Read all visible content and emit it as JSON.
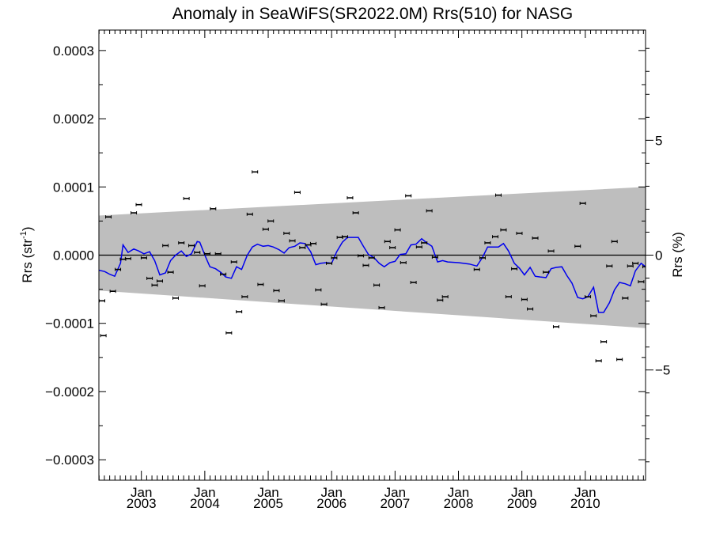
{
  "chart_data": {
    "type": "scatter",
    "title": "Anomaly in SeaWiFS(SR2022.0M) Rrs(510) for NASG",
    "ylabel": "Rrs (str",
    "ylabel_sup": "-1",
    "ylabel_close": ")",
    "y2label": "Rrs (%)",
    "xlim": [
      2002.33,
      2010.95
    ],
    "ylim": [
      -0.00033,
      0.00033
    ],
    "y2lim": [
      -9.8,
      9.8
    ],
    "grid": false,
    "yticks": [
      {
        "value": 0.0003,
        "label": "0.0003"
      },
      {
        "value": 0.0002,
        "label": "0.0002"
      },
      {
        "value": 0.0001,
        "label": "0.0001"
      },
      {
        "value": 0.0,
        "label": "0.0000"
      },
      {
        "value": -0.0001,
        "label": "−0.0001"
      },
      {
        "value": -0.0002,
        "label": "−0.0002"
      },
      {
        "value": -0.0003,
        "label": "−0.0003"
      }
    ],
    "y2ticks": [
      {
        "value": 5,
        "label": "5"
      },
      {
        "value": 0,
        "label": "0"
      },
      {
        "value": -5,
        "label": "−5"
      }
    ],
    "xticks": [
      {
        "value": 2003.0,
        "month": "Jan",
        "year": "2003"
      },
      {
        "value": 2004.0,
        "month": "Jan",
        "year": "2004"
      },
      {
        "value": 2005.0,
        "month": "Jan",
        "year": "2005"
      },
      {
        "value": 2006.0,
        "month": "Jan",
        "year": "2006"
      },
      {
        "value": 2007.0,
        "month": "Jan",
        "year": "2007"
      },
      {
        "value": 2008.0,
        "month": "Jan",
        "year": "2008"
      },
      {
        "value": 2009.0,
        "month": "Jan",
        "year": "2009"
      },
      {
        "value": 2010.0,
        "month": "Jan",
        "year": "2010"
      }
    ],
    "uncertainty_band": {
      "x": [
        2002.33,
        2010.95
      ],
      "upper": [
        5.8e-05,
        0.0001
      ],
      "lower": [
        -5.2e-05,
        -0.000107
      ]
    },
    "points": [
      {
        "x": 2002.38,
        "y": -6.7e-05
      },
      {
        "x": 2002.4,
        "y": -0.000118
      },
      {
        "x": 2002.48,
        "y": 5.6e-05
      },
      {
        "x": 2002.55,
        "y": -5.3e-05
      },
      {
        "x": 2002.63,
        "y": -2.1e-05
      },
      {
        "x": 2002.71,
        "y": -6e-06
      },
      {
        "x": 2002.79,
        "y": -5e-06
      },
      {
        "x": 2002.88,
        "y": 6.2e-05
      },
      {
        "x": 2002.96,
        "y": 7.4e-05
      },
      {
        "x": 2003.04,
        "y": -4e-06
      },
      {
        "x": 2003.13,
        "y": -3.4e-05
      },
      {
        "x": 2003.21,
        "y": -4.4e-05
      },
      {
        "x": 2003.29,
        "y": -3.8e-05
      },
      {
        "x": 2003.38,
        "y": 1.4e-05
      },
      {
        "x": 2003.46,
        "y": -2.5e-05
      },
      {
        "x": 2003.54,
        "y": -6.3e-05
      },
      {
        "x": 2003.63,
        "y": 1.8e-05
      },
      {
        "x": 2003.71,
        "y": 8.3e-05
      },
      {
        "x": 2003.79,
        "y": 1.4e-05
      },
      {
        "x": 2003.88,
        "y": 4e-06
      },
      {
        "x": 2003.96,
        "y": -4.5e-05
      },
      {
        "x": 2004.04,
        "y": 2e-06
      },
      {
        "x": 2004.13,
        "y": 6.8e-05
      },
      {
        "x": 2004.21,
        "y": 2e-06
      },
      {
        "x": 2004.29,
        "y": -2.8e-05
      },
      {
        "x": 2004.38,
        "y": -0.000114
      },
      {
        "x": 2004.46,
        "y": -1e-05
      },
      {
        "x": 2004.54,
        "y": -8.3e-05
      },
      {
        "x": 2004.63,
        "y": -6.1e-05
      },
      {
        "x": 2004.71,
        "y": 6e-05
      },
      {
        "x": 2004.79,
        "y": 0.000122
      },
      {
        "x": 2004.88,
        "y": -4.3e-05
      },
      {
        "x": 2004.96,
        "y": 3.8e-05
      },
      {
        "x": 2005.04,
        "y": 5e-05
      },
      {
        "x": 2005.13,
        "y": -5.2e-05
      },
      {
        "x": 2005.21,
        "y": -6.7e-05
      },
      {
        "x": 2005.29,
        "y": 3.2e-05
      },
      {
        "x": 2005.38,
        "y": 2.1e-05
      },
      {
        "x": 2005.46,
        "y": 9.2e-05
      },
      {
        "x": 2005.54,
        "y": 1.1e-05
      },
      {
        "x": 2005.63,
        "y": 1.5e-05
      },
      {
        "x": 2005.71,
        "y": 1.7e-05
      },
      {
        "x": 2005.79,
        "y": -5.1e-05
      },
      {
        "x": 2005.88,
        "y": -7.2e-05
      },
      {
        "x": 2005.96,
        "y": -1.2e-05
      },
      {
        "x": 2006.04,
        "y": -4e-06
      },
      {
        "x": 2006.13,
        "y": 2.6e-05
      },
      {
        "x": 2006.21,
        "y": 2.7e-05
      },
      {
        "x": 2006.29,
        "y": 8.4e-05
      },
      {
        "x": 2006.38,
        "y": 6.2e-05
      },
      {
        "x": 2006.46,
        "y": -1e-06
      },
      {
        "x": 2006.54,
        "y": -1.5e-05
      },
      {
        "x": 2006.63,
        "y": -4e-06
      },
      {
        "x": 2006.71,
        "y": -4.4e-05
      },
      {
        "x": 2006.79,
        "y": -7.7e-05
      },
      {
        "x": 2006.88,
        "y": 2e-05
      },
      {
        "x": 2006.96,
        "y": 1.1e-05
      },
      {
        "x": 2007.04,
        "y": 3.7e-05
      },
      {
        "x": 2007.13,
        "y": -1.1e-05
      },
      {
        "x": 2007.21,
        "y": 8.7e-05
      },
      {
        "x": 2007.29,
        "y": -4e-05
      },
      {
        "x": 2007.38,
        "y": 1.2e-05
      },
      {
        "x": 2007.46,
        "y": 1.8e-05
      },
      {
        "x": 2007.54,
        "y": 6.5e-05
      },
      {
        "x": 2007.63,
        "y": -3e-06
      },
      {
        "x": 2007.71,
        "y": -6.6e-05
      },
      {
        "x": 2007.79,
        "y": -6.1e-05
      },
      {
        "x": 2008.29,
        "y": -2.1e-05
      },
      {
        "x": 2008.38,
        "y": -4e-06
      },
      {
        "x": 2008.46,
        "y": 1.8e-05
      },
      {
        "x": 2008.58,
        "y": 2.7e-05
      },
      {
        "x": 2008.63,
        "y": 8.8e-05
      },
      {
        "x": 2008.71,
        "y": 3.7e-05
      },
      {
        "x": 2008.79,
        "y": -6.1e-05
      },
      {
        "x": 2008.88,
        "y": -2e-05
      },
      {
        "x": 2008.96,
        "y": 3.2e-05
      },
      {
        "x": 2009.04,
        "y": -6.5e-05
      },
      {
        "x": 2009.13,
        "y": -7.9e-05
      },
      {
        "x": 2009.21,
        "y": 2.5e-05
      },
      {
        "x": 2009.38,
        "y": -2.5e-05
      },
      {
        "x": 2009.46,
        "y": 6e-06
      },
      {
        "x": 2009.54,
        "y": -0.000105
      },
      {
        "x": 2009.88,
        "y": 1.3e-05
      },
      {
        "x": 2009.96,
        "y": 7.6e-05
      },
      {
        "x": 2010.04,
        "y": -6.1e-05
      },
      {
        "x": 2010.13,
        "y": -8.9e-05
      },
      {
        "x": 2010.21,
        "y": -0.000155
      },
      {
        "x": 2010.29,
        "y": -0.000127
      },
      {
        "x": 2010.38,
        "y": -1.6e-05
      },
      {
        "x": 2010.46,
        "y": 2e-05
      },
      {
        "x": 2010.54,
        "y": -0.000153
      },
      {
        "x": 2010.63,
        "y": -6.3e-05
      },
      {
        "x": 2010.71,
        "y": -1.6e-05
      },
      {
        "x": 2010.79,
        "y": -1.2e-05
      },
      {
        "x": 2010.88,
        "y": -3.9e-05
      },
      {
        "x": 2010.95,
        "y": -1.7e-05
      }
    ],
    "smoothed_series": {
      "color": "#0000ee",
      "x": [
        2002.33,
        2002.42,
        2002.5,
        2002.58,
        2002.67,
        2002.71,
        2002.79,
        2002.88,
        2002.96,
        2003.04,
        2003.13,
        2003.21,
        2003.29,
        2003.38,
        2003.46,
        2003.54,
        2003.63,
        2003.71,
        2003.79,
        2003.88,
        2003.92,
        2004.0,
        2004.08,
        2004.17,
        2004.25,
        2004.33,
        2004.42,
        2004.5,
        2004.58,
        2004.67,
        2004.75,
        2004.83,
        2004.92,
        2005.0,
        2005.08,
        2005.17,
        2005.25,
        2005.33,
        2005.42,
        2005.5,
        2005.58,
        2005.67,
        2005.75,
        2005.83,
        2005.92,
        2006.0,
        2006.08,
        2006.17,
        2006.25,
        2006.33,
        2006.42,
        2006.5,
        2006.58,
        2006.67,
        2006.75,
        2006.83,
        2006.92,
        2007.0,
        2007.08,
        2007.17,
        2007.25,
        2007.33,
        2007.42,
        2007.5,
        2007.58,
        2007.67,
        2007.75,
        2007.83,
        2008.0,
        2008.17,
        2008.29,
        2008.38,
        2008.46,
        2008.54,
        2008.63,
        2008.71,
        2008.79,
        2008.88,
        2008.96,
        2009.04,
        2009.13,
        2009.21,
        2009.29,
        2009.38,
        2009.46,
        2009.54,
        2009.63,
        2009.71,
        2009.79,
        2009.88,
        2009.96,
        2010.04,
        2010.13,
        2010.21,
        2010.29,
        2010.38,
        2010.46,
        2010.54,
        2010.63,
        2010.71,
        2010.79,
        2010.88,
        2010.95
      ],
      "y": [
        -2.2e-05,
        -2.4e-05,
        -2.8e-05,
        -3.1e-05,
        -1.2e-05,
        1.5e-05,
        4e-06,
        9e-06,
        6e-06,
        2e-06,
        5e-06,
        -8e-06,
        -2.9e-05,
        -2.6e-05,
        -8e-06,
        0.0,
        6e-06,
        -2e-06,
        2e-06,
        2e-05,
        1.9e-05,
        0.0,
        -1.7e-05,
        -2e-05,
        -2.5e-05,
        -3.2e-05,
        -3.4e-05,
        -1.7e-05,
        -2.1e-05,
        0.0,
        1.2e-05,
        1.6e-05,
        1.3e-05,
        1.4e-05,
        1.2e-05,
        8e-06,
        3e-06,
        1.1e-05,
        1.3e-05,
        1.8e-05,
        1.7e-05,
        5e-06,
        -1.4e-05,
        -1.2e-05,
        -1.1e-05,
        -1.2e-05,
        5e-06,
        1.9e-05,
        2.6e-05,
        2.6e-05,
        2.6e-05,
        1.3e-05,
        1e-06,
        -4e-06,
        -1.2e-05,
        -1.7e-05,
        -1.1e-05,
        -9e-06,
        1e-06,
        2e-06,
        1.5e-05,
        1.6e-05,
        2.4e-05,
        1.8e-05,
        1.3e-05,
        -1e-05,
        -8e-06,
        -1e-05,
        -1.1e-05,
        -1.3e-05,
        -1.6e-05,
        -3e-06,
        1.2e-05,
        1.2e-05,
        1.2e-05,
        1.7e-05,
        6e-06,
        -1.2e-05,
        -1.9e-05,
        -2.9e-05,
        -1.8e-05,
        -3.1e-05,
        -3.2e-05,
        -3.3e-05,
        -2e-05,
        -1.8e-05,
        -1.7e-05,
        -3e-05,
        -4.1e-05,
        -6.2e-05,
        -6.4e-05,
        -6.1e-05,
        -4.7e-05,
        -8.4e-05,
        -8.4e-05,
        -7e-05,
        -5.1e-05,
        -4e-05,
        -4.2e-05,
        -4.5e-05,
        -2.3e-05,
        -1.2e-05,
        -1.7e-05
      ]
    }
  }
}
